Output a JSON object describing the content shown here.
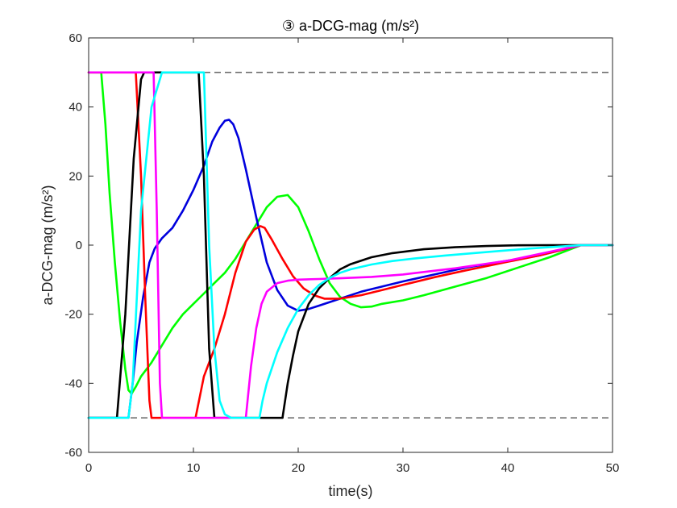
{
  "chart_data": {
    "type": "line",
    "title": "③ a-DCG-mag (m/s²)",
    "xlabel": "time(s)",
    "ylabel": "a-DCG-mag (m/s²)",
    "xlim": [
      0,
      50
    ],
    "ylim": [
      -60,
      60
    ],
    "xticks": [
      0,
      10,
      20,
      30,
      40,
      50
    ],
    "yticks": [
      -60,
      -40,
      -20,
      0,
      20,
      40,
      60
    ],
    "xtick_labels": [
      "0",
      "10",
      "20",
      "30",
      "40",
      "50"
    ],
    "ytick_labels": [
      "-60",
      "-40",
      "-20",
      "0",
      "20",
      "40",
      "60"
    ],
    "grid": false,
    "reference_lines": [
      {
        "y": 50,
        "style": "dashed",
        "color": "#555555"
      },
      {
        "y": -50,
        "style": "dashed",
        "color": "#555555"
      }
    ],
    "series": [
      {
        "name": "green",
        "color": "#00ff00",
        "x": [
          0,
          1.2,
          1.6,
          2.0,
          2.5,
          3.0,
          3.5,
          3.8,
          4.1,
          4.5,
          5.0,
          6.0,
          7.0,
          8.0,
          9.0,
          10.0,
          11.0,
          12.0,
          13.0,
          14.0,
          15.0,
          16.0,
          17.0,
          18.0,
          19.0,
          20.0,
          21.0,
          22.0,
          23.0,
          24.0,
          25.0,
          26.0,
          27.0,
          28.0,
          30.0,
          32.0,
          35.0,
          38.0,
          41.0,
          44.0,
          47.0,
          50.0
        ],
        "y": [
          50,
          50,
          35,
          15,
          -5,
          -22,
          -36,
          -42,
          -43,
          -41,
          -38,
          -34,
          -29,
          -24,
          -20,
          -17,
          -14,
          -11,
          -8,
          -4,
          1,
          6,
          11,
          14,
          14.5,
          11,
          4,
          -4,
          -11,
          -15,
          -17,
          -18,
          -17.8,
          -17,
          -16,
          -14.5,
          -12,
          -9.5,
          -6.5,
          -3.5,
          0,
          0
        ]
      },
      {
        "name": "blue",
        "color": "#0000dd",
        "x": [
          0,
          3.8,
          4.2,
          4.6,
          5.2,
          5.8,
          6.3,
          7.0,
          8.0,
          9.0,
          10.0,
          11.0,
          11.8,
          12.5,
          13.0,
          13.4,
          13.8,
          14.3,
          15.0,
          16.0,
          17.0,
          18.0,
          19.0,
          20.0,
          21.0,
          22.0,
          24.0,
          26.0,
          28.0,
          30.0,
          33.0,
          36.0,
          40.0,
          43.0,
          47.0,
          50.0
        ],
        "y": [
          -50,
          -50,
          -40,
          -28,
          -15,
          -5,
          -1,
          2,
          5,
          10,
          16,
          23,
          30,
          34,
          36,
          36.3,
          35,
          31,
          22,
          8,
          -5,
          -13,
          -17.5,
          -19,
          -18.5,
          -17.5,
          -15.5,
          -13.5,
          -12,
          -10.5,
          -8.5,
          -6.5,
          -4.5,
          -3,
          0,
          0
        ]
      },
      {
        "name": "red",
        "color": "#ff0000",
        "x": [
          0,
          4.5,
          5.0,
          5.4,
          5.8,
          6.0,
          10.2,
          11.0,
          12.0,
          13.0,
          14.0,
          15.0,
          15.8,
          16.4,
          16.8,
          17.5,
          18.5,
          19.5,
          20.5,
          21.5,
          22.5,
          24.0,
          26.0,
          28.0,
          30.0,
          33.0,
          36.0,
          40.0,
          43.0,
          47.0,
          50.0
        ],
        "y": [
          50,
          50,
          20,
          -15,
          -45,
          -50,
          -50,
          -38,
          -30,
          -20,
          -8,
          1,
          4.5,
          5.5,
          5,
          1.5,
          -4,
          -9,
          -12.5,
          -14.5,
          -15.5,
          -15.5,
          -14.5,
          -13,
          -11.5,
          -9.3,
          -7.3,
          -4.8,
          -3,
          0,
          0
        ]
      },
      {
        "name": "black",
        "color": "#000000",
        "x": [
          0,
          2.7,
          3.5,
          4.3,
          5.0,
          5.3,
          10.5,
          11.0,
          11.5,
          12.0,
          18.5,
          19.0,
          19.5,
          20.0,
          21.0,
          22.0,
          23.0,
          24.0,
          25.0,
          27.0,
          29.0,
          32.0,
          35.0,
          38.0,
          41.0,
          44.0,
          47.0,
          50.0
        ],
        "y": [
          -50,
          -50,
          -20,
          25,
          48,
          50,
          50,
          20,
          -30,
          -50,
          -50,
          -40,
          -32,
          -25,
          -17,
          -12.5,
          -9.5,
          -7,
          -5.5,
          -3.5,
          -2.3,
          -1.2,
          -0.6,
          -0.25,
          -0.05,
          0,
          0,
          0
        ]
      },
      {
        "name": "magenta",
        "color": "#ff00ff",
        "x": [
          0,
          6.2,
          6.5,
          6.8,
          7.0,
          15.0,
          15.5,
          16.0,
          16.5,
          17.0,
          18.0,
          19.0,
          20.0,
          22.0,
          24.0,
          27.0,
          30.0,
          35.0,
          40.0,
          47.0,
          50.0
        ],
        "y": [
          50,
          50,
          10,
          -40,
          -50,
          -50,
          -35,
          -24,
          -17,
          -13.5,
          -11,
          -10.3,
          -10,
          -9.8,
          -9.6,
          -9.2,
          -8.5,
          -6.7,
          -4.5,
          0,
          0
        ]
      },
      {
        "name": "cyan",
        "color": "#00ffff",
        "x": [
          0,
          3.8,
          4.2,
          5.0,
          6.0,
          7.0,
          11.0,
          11.5,
          12.0,
          12.5,
          13.0,
          13.6,
          16.3,
          16.6,
          17.0,
          18.0,
          19.0,
          20.0,
          21.0,
          22.0,
          23.0,
          24.0,
          25.0,
          27.0,
          29.0,
          31.0,
          34.0,
          38.0,
          42.0,
          47.0,
          50.0
        ],
        "y": [
          -50,
          -50,
          -40,
          10,
          40,
          50,
          50,
          0,
          -30,
          -45,
          -49,
          -50,
          -50,
          -45,
          -40,
          -31,
          -24,
          -18.5,
          -14.5,
          -11.5,
          -9.5,
          -8,
          -7,
          -5.6,
          -4.6,
          -3.9,
          -3,
          -2,
          -1,
          0,
          0
        ]
      }
    ]
  }
}
